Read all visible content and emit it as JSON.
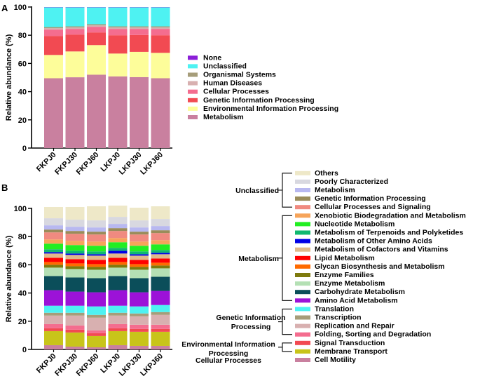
{
  "chart_data": [
    {
      "panel": "A",
      "type": "bar",
      "stacked": true,
      "ylabel": "Relative abundance (%)",
      "ylim": [
        0,
        100
      ],
      "yticks": [
        0,
        20,
        40,
        60,
        80,
        100
      ],
      "categories": [
        "FKPJ0",
        "FKPJ30",
        "FKPJ60",
        "LKPJ0",
        "LKPJ30",
        "LKPJ60"
      ],
      "legend_position": "right",
      "series": [
        {
          "name": "Metabolism",
          "color": "#c9809f",
          "values": [
            49.5,
            50.2,
            52.0,
            50.8,
            50.3,
            49.5
          ]
        },
        {
          "name": "Environmental Information Processing",
          "color": "#fdfd9a",
          "values": [
            16.5,
            18.3,
            21.0,
            16.2,
            17.9,
            18.0
          ]
        },
        {
          "name": "Genetic Information Processing",
          "color": "#f24a52",
          "values": [
            13.5,
            12.0,
            9.0,
            13.0,
            12.0,
            12.5
          ]
        },
        {
          "name": "Cellular Processes",
          "color": "#f46d8f",
          "values": [
            4.5,
            4.0,
            4.0,
            4.5,
            4.3,
            4.5
          ]
        },
        {
          "name": "Human Diseases",
          "color": "#d8b0b0",
          "values": [
            1.0,
            1.0,
            1.0,
            1.0,
            1.0,
            1.0
          ]
        },
        {
          "name": "Organismal Systems",
          "color": "#a69d7a",
          "values": [
            0.8,
            0.8,
            0.8,
            0.8,
            0.8,
            0.8
          ]
        },
        {
          "name": "Unclassified",
          "color": "#4ef2f2",
          "values": [
            14.0,
            13.5,
            12.0,
            13.5,
            13.5,
            13.5
          ]
        },
        {
          "name": "None",
          "color": "#8b1ed8",
          "values": [
            0.2,
            0.2,
            0.2,
            0.2,
            0.2,
            0.2
          ]
        }
      ]
    },
    {
      "panel": "B",
      "type": "bar",
      "stacked": true,
      "ylabel": "Relative abundance (%)",
      "ylim": [
        0,
        100
      ],
      "yticks": [
        0,
        20,
        40,
        60,
        80,
        100
      ],
      "categories": [
        "FKPJ0",
        "FKPJ30",
        "FKPJ60",
        "LKPJ0",
        "LKPJ30",
        "LKPJ60"
      ],
      "legend_position": "right",
      "series": [
        {
          "name": "Cell Motility",
          "color": "#c9809f",
          "values": [
            3,
            2,
            1.5,
            3,
            2.5,
            2.5
          ]
        },
        {
          "name": "Membrane Transport",
          "color": "#c8c41a",
          "values": [
            10,
            10,
            8,
            10,
            10,
            10
          ]
        },
        {
          "name": "Signal Transduction",
          "color": "#f24a52",
          "values": [
            2,
            2,
            2,
            2,
            2,
            2
          ]
        },
        {
          "name": "Folding, Sorting and Degradation",
          "color": "#f46d8f",
          "values": [
            3,
            3,
            2,
            3,
            3,
            3
          ]
        },
        {
          "name": "Replication and Repair",
          "color": "#d8b0b0",
          "values": [
            6,
            7,
            9,
            6,
            6,
            7
          ]
        },
        {
          "name": "Transcription",
          "color": "#a69d7a",
          "values": [
            2,
            2,
            2,
            2,
            2,
            2
          ]
        },
        {
          "name": "Translation",
          "color": "#4ef2f2",
          "values": [
            5,
            5,
            6,
            5,
            5,
            5
          ]
        },
        {
          "name": "Amino Acid Metabolism",
          "color": "#9c12d8",
          "values": [
            11,
            10,
            10,
            11,
            10,
            10
          ]
        },
        {
          "name": "Carbohydrate Metabolism",
          "color": "#0b4e5a",
          "values": [
            10,
            10,
            10,
            10,
            10,
            10
          ]
        },
        {
          "name": "Enzyme Metabolism",
          "color": "#b4e0b4",
          "values": [
            6,
            6,
            6,
            6,
            6,
            6
          ]
        },
        {
          "name": "Enzyme Families",
          "color": "#7e7a0e",
          "values": [
            2,
            2,
            2,
            2,
            2,
            2
          ]
        },
        {
          "name": "Glycan Biosynthesis and Metabolism",
          "color": "#ff6a00",
          "values": [
            2,
            2,
            2,
            2,
            2,
            2
          ]
        },
        {
          "name": "Lipid Metabolism",
          "color": "#ff0000",
          "values": [
            3,
            3,
            3,
            3,
            3,
            3
          ]
        },
        {
          "name": "Metabolism of Cofactors and Vitamins",
          "color": "#e0b98a",
          "values": [
            3,
            3,
            3,
            3,
            3,
            3
          ]
        },
        {
          "name": "Metabolism of Other Amino Acids",
          "color": "#0000e6",
          "values": [
            1,
            1,
            1,
            2,
            1,
            1
          ]
        },
        {
          "name": "Metabolism of Terpenoids and Polyketides",
          "color": "#10b870",
          "values": [
            2,
            2,
            2,
            2,
            2,
            2
          ]
        },
        {
          "name": "Nucleotide Metabolism",
          "color": "#22ee22",
          "values": [
            4,
            4,
            4,
            4,
            4,
            4
          ]
        },
        {
          "name": "Xenobiotic Biodegradation and Metabolism",
          "color": "#f6a45a",
          "values": [
            3,
            3,
            3,
            3,
            3,
            3
          ]
        },
        {
          "name": "Cellular Processes and Signaling",
          "color": "#f08a80",
          "values": [
            5,
            5,
            5,
            5,
            5,
            5
          ]
        },
        {
          "name": "Genetic Information Processing",
          "color": "#9a8c5a",
          "values": [
            2,
            2,
            2,
            2,
            2,
            2
          ]
        },
        {
          "name": "Metabolism",
          "color": "#b8b8f0",
          "values": [
            3,
            3,
            3,
            3,
            3,
            3
          ]
        },
        {
          "name": "Poorly Characterized",
          "color": "#d8d8e0",
          "values": [
            5,
            5,
            5,
            5,
            5,
            5
          ]
        },
        {
          "name": "Others",
          "color": "#eee8c8",
          "values": [
            8,
            9,
            10,
            8,
            9,
            9
          ]
        }
      ],
      "groups": [
        {
          "label_lines": [
            "Unclassified"
          ]
        },
        {
          "label_lines": [
            "Metabolism"
          ]
        },
        {
          "label_lines": [
            "Genetic Information",
            "Processing"
          ]
        },
        {
          "label_lines": [
            "Environmental Information",
            "Processing"
          ]
        },
        {
          "label_lines": [
            "Cellular Processes"
          ]
        }
      ]
    }
  ]
}
